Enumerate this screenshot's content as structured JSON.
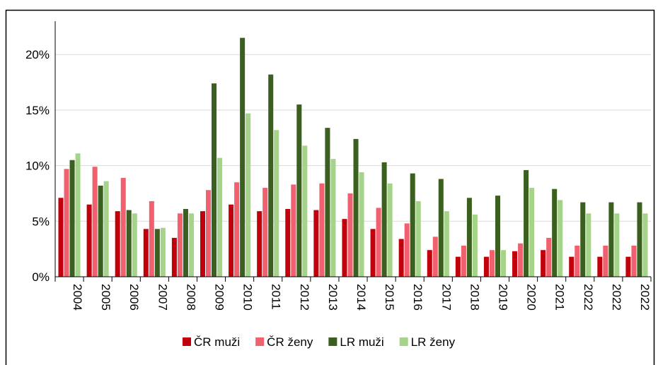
{
  "chart_data": {
    "type": "bar",
    "categories": [
      "2004",
      "2005",
      "2006",
      "2007",
      "2008",
      "2009",
      "2010",
      "2011",
      "2012",
      "2013",
      "2014",
      "2015",
      "2016",
      "2017",
      "2018",
      "2019",
      "2020",
      "2021",
      "2022",
      "2022",
      "2022"
    ],
    "series": [
      {
        "name": "ČR muži",
        "color": "#c0000c",
        "values": [
          7.1,
          6.5,
          5.9,
          4.3,
          3.5,
          5.9,
          6.5,
          5.9,
          6.1,
          6.0,
          5.2,
          4.3,
          3.4,
          2.4,
          1.8,
          1.8,
          2.3,
          2.4,
          1.8,
          1.8,
          1.8
        ]
      },
      {
        "name": "ČR ženy",
        "color": "#f0606e",
        "values": [
          9.7,
          9.9,
          8.9,
          6.8,
          5.7,
          7.8,
          8.5,
          8.0,
          8.3,
          8.4,
          7.5,
          6.2,
          4.8,
          3.6,
          2.8,
          2.4,
          3.0,
          3.5,
          2.8,
          2.8,
          2.8
        ]
      },
      {
        "name": "LR muži",
        "color": "#3a5f1e",
        "values": [
          10.5,
          8.2,
          6.0,
          4.3,
          6.1,
          17.4,
          21.5,
          18.2,
          15.5,
          13.4,
          12.4,
          10.3,
          9.3,
          8.8,
          7.1,
          7.3,
          9.6,
          7.9,
          6.7,
          6.7,
          6.7
        ]
      },
      {
        "name": "LR ženy",
        "color": "#a6d38a",
        "values": [
          11.1,
          8.6,
          5.7,
          4.4,
          5.7,
          10.7,
          14.7,
          13.2,
          11.8,
          10.6,
          9.4,
          8.4,
          6.8,
          5.9,
          5.6,
          2.4,
          8.0,
          6.9,
          5.7,
          5.7,
          5.7
        ]
      }
    ],
    "ylim": [
      0,
      23
    ],
    "yticks": [
      {
        "value": 0,
        "label": "0%"
      },
      {
        "value": 5,
        "label": "5%"
      },
      {
        "value": 10,
        "label": "10%"
      },
      {
        "value": 15,
        "label": "15%"
      },
      {
        "value": 20,
        "label": "20%"
      }
    ],
    "grid": true,
    "legend": "bottom"
  }
}
